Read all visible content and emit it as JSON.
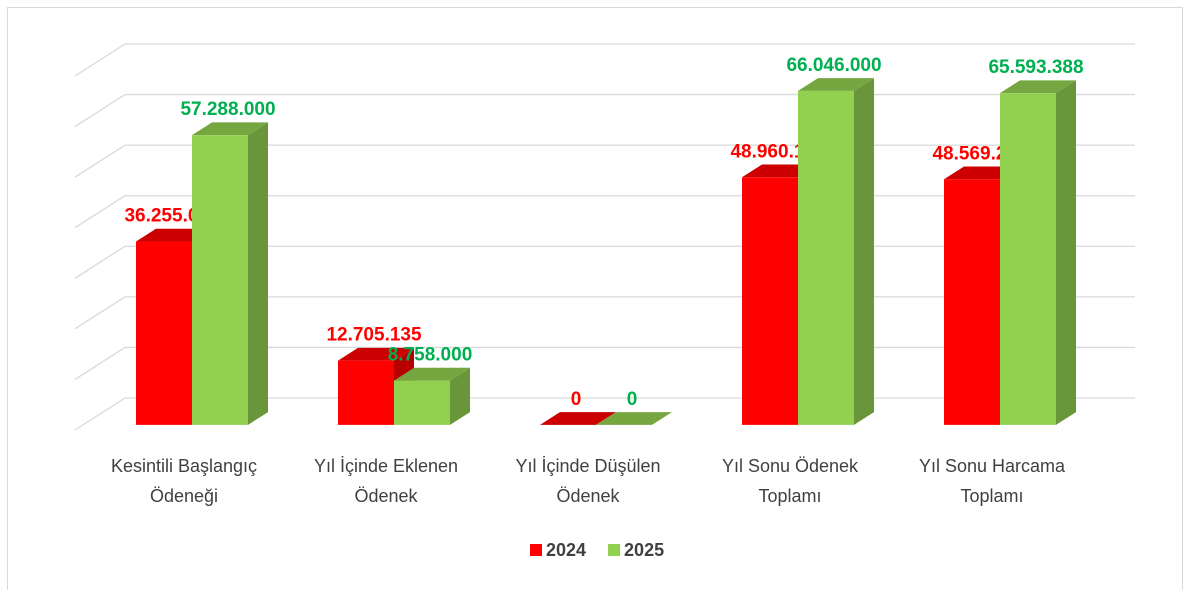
{
  "chart_data": {
    "type": "bar3d",
    "categories": [
      "Kesintili Başlangıç Ödeneği",
      "Yıl İçinde Eklenen Ödenek",
      "Yıl İçinde Düşülen Ödenek",
      "Yıl Sonu Ödenek Toplamı",
      "Yıl Sonu Harcama Toplamı"
    ],
    "category_lines": [
      [
        "Kesintili Başlangıç",
        "Ödeneği"
      ],
      [
        "Yıl İçinde Eklenen",
        "Ödenek"
      ],
      [
        "Yıl İçinde Düşülen",
        "Ödenek"
      ],
      [
        "Yıl Sonu Ödenek",
        "Toplamı"
      ],
      [
        "Yıl Sonu Harcama",
        "Toplamı"
      ]
    ],
    "series": [
      {
        "name": "2024",
        "color": "#ff0000",
        "label_color": "#ff0000",
        "values": [
          36255000,
          12705135,
          0,
          48960135,
          48569289
        ],
        "value_labels": [
          "36.255.000",
          "12.705.135",
          "0",
          "48.960.135",
          "48.569.289"
        ]
      },
      {
        "name": "2025",
        "color": "#92d050",
        "label_color": "#00b050",
        "values": [
          57288000,
          8758000,
          0,
          66046000,
          65593388
        ],
        "value_labels": [
          "57.288.000",
          "8.758.000",
          "0",
          "66.046.000",
          "65.593.388"
        ]
      }
    ],
    "ylim": [
      0,
      70000000
    ],
    "yticks": [
      0,
      10000000,
      20000000,
      30000000,
      40000000,
      50000000,
      60000000,
      70000000
    ],
    "grid": true,
    "legend": "bottom"
  }
}
